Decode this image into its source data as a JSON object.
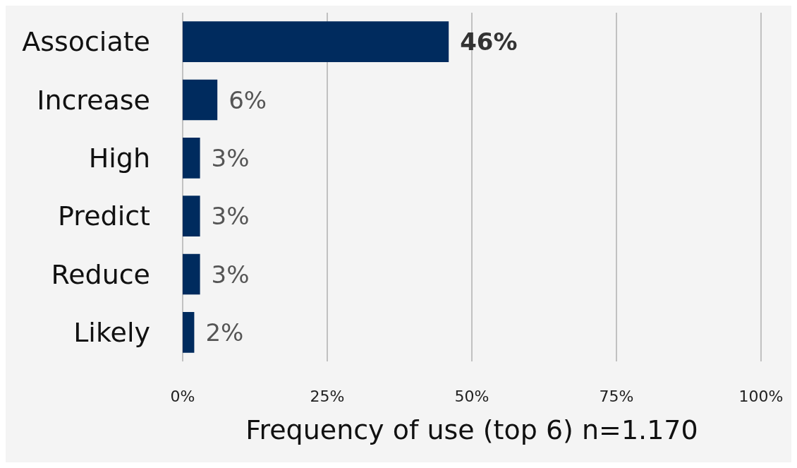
{
  "chart_data": {
    "type": "bar",
    "orientation": "horizontal",
    "xlabel": "Frequency of use (top 6) n=1.170",
    "categories": [
      "Associate",
      "Increase",
      "High",
      "Predict",
      "Reduce",
      "Likely"
    ],
    "values": [
      46,
      6,
      3,
      3,
      3,
      2
    ],
    "color": "#002b5e",
    "xlim": [
      0,
      100
    ],
    "xticks": [
      {
        "value": 0,
        "label": "0%"
      },
      {
        "value": 25,
        "label": "25%"
      },
      {
        "value": 50,
        "label": "50%"
      },
      {
        "value": 75,
        "label": "75%"
      },
      {
        "value": 100,
        "label": "100%"
      }
    ],
    "value_labels": [
      "46%",
      "6%",
      "3%",
      "3%",
      "3%",
      "2%"
    ],
    "grid": "x"
  }
}
